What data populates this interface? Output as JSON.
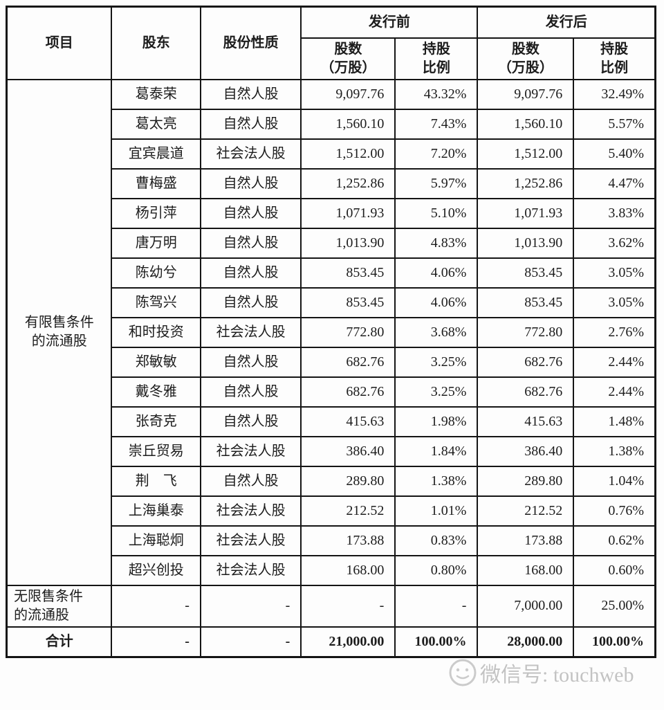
{
  "table": {
    "headers": {
      "item": "项目",
      "shareholder": "股东",
      "nature": "股份性质",
      "pre_group": "发行前",
      "post_group": "发行后",
      "shares_2line": "股数\n（万股）",
      "ratio_2line": "持股\n比例"
    },
    "restricted_label": "有限售条件\n的流通股",
    "rows": [
      {
        "name": "葛泰荣",
        "nature": "自然人股",
        "pre_shares": "9,097.76",
        "pre_pct": "43.32%",
        "post_shares": "9,097.76",
        "post_pct": "32.49%"
      },
      {
        "name": "葛太亮",
        "nature": "自然人股",
        "pre_shares": "1,560.10",
        "pre_pct": "7.43%",
        "post_shares": "1,560.10",
        "post_pct": "5.57%"
      },
      {
        "name": "宜宾晨道",
        "nature": "社会法人股",
        "pre_shares": "1,512.00",
        "pre_pct": "7.20%",
        "post_shares": "1,512.00",
        "post_pct": "5.40%"
      },
      {
        "name": "曹梅盛",
        "nature": "自然人股",
        "pre_shares": "1,252.86",
        "pre_pct": "5.97%",
        "post_shares": "1,252.86",
        "post_pct": "4.47%"
      },
      {
        "name": "杨引萍",
        "nature": "自然人股",
        "pre_shares": "1,071.93",
        "pre_pct": "5.10%",
        "post_shares": "1,071.93",
        "post_pct": "3.83%"
      },
      {
        "name": "唐万明",
        "nature": "自然人股",
        "pre_shares": "1,013.90",
        "pre_pct": "4.83%",
        "post_shares": "1,013.90",
        "post_pct": "3.62%"
      },
      {
        "name": "陈幼兮",
        "nature": "自然人股",
        "pre_shares": "853.45",
        "pre_pct": "4.06%",
        "post_shares": "853.45",
        "post_pct": "3.05%"
      },
      {
        "name": "陈驾兴",
        "nature": "自然人股",
        "pre_shares": "853.45",
        "pre_pct": "4.06%",
        "post_shares": "853.45",
        "post_pct": "3.05%"
      },
      {
        "name": "和时投资",
        "nature": "社会法人股",
        "pre_shares": "772.80",
        "pre_pct": "3.68%",
        "post_shares": "772.80",
        "post_pct": "2.76%"
      },
      {
        "name": "郑敏敏",
        "nature": "自然人股",
        "pre_shares": "682.76",
        "pre_pct": "3.25%",
        "post_shares": "682.76",
        "post_pct": "2.44%"
      },
      {
        "name": "戴冬雅",
        "nature": "自然人股",
        "pre_shares": "682.76",
        "pre_pct": "3.25%",
        "post_shares": "682.76",
        "post_pct": "2.44%"
      },
      {
        "name": "张奇克",
        "nature": "自然人股",
        "pre_shares": "415.63",
        "pre_pct": "1.98%",
        "post_shares": "415.63",
        "post_pct": "1.48%"
      },
      {
        "name": "崇丘贸易",
        "nature": "社会法人股",
        "pre_shares": "386.40",
        "pre_pct": "1.84%",
        "post_shares": "386.40",
        "post_pct": "1.38%"
      },
      {
        "name": "荆　飞",
        "nature": "自然人股",
        "pre_shares": "289.80",
        "pre_pct": "1.38%",
        "post_shares": "289.80",
        "post_pct": "1.04%"
      },
      {
        "name": "上海巢泰",
        "nature": "社会法人股",
        "pre_shares": "212.52",
        "pre_pct": "1.01%",
        "post_shares": "212.52",
        "post_pct": "0.76%"
      },
      {
        "name": "上海聪炯",
        "nature": "社会法人股",
        "pre_shares": "173.88",
        "pre_pct": "0.83%",
        "post_shares": "173.88",
        "post_pct": "0.62%"
      },
      {
        "name": "超兴创投",
        "nature": "社会法人股",
        "pre_shares": "168.00",
        "pre_pct": "0.80%",
        "post_shares": "168.00",
        "post_pct": "0.60%"
      }
    ],
    "unrestricted": {
      "label": "无限售条件\n的流通股",
      "shareholder": "-",
      "nature": "-",
      "pre_shares": "-",
      "pre_pct": "-",
      "post_shares": "7,000.00",
      "post_pct": "25.00%"
    },
    "total": {
      "label": "合计",
      "shareholder": "-",
      "nature": "-",
      "pre_shares": "21,000.00",
      "pre_pct": "100.00%",
      "post_shares": "28,000.00",
      "post_pct": "100.00%"
    }
  },
  "watermark": {
    "text": "微信号: touchweb"
  },
  "colors": {
    "border": "#141414",
    "text": "#1c1c1c",
    "watermark": "#bdbdbd",
    "background": "#fdfdfd"
  }
}
